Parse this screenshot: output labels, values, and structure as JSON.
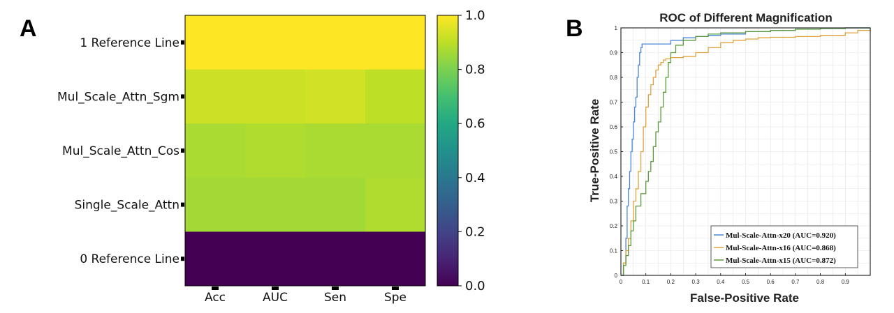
{
  "panels": {
    "a": "A",
    "b": "B"
  },
  "chart_data": [
    {
      "type": "heatmap",
      "panel": "A",
      "title": "",
      "rows": [
        "1 Reference Line",
        "Mul_Scale_Attn_Sgm",
        "Mul_Scale_Attn_Cos",
        "Single_Scale_Attn",
        "0 Reference Line"
      ],
      "columns": [
        "Acc",
        "AUC",
        "Sen",
        "Spe"
      ],
      "values": [
        [
          1.0,
          1.0,
          1.0,
          1.0
        ],
        [
          0.92,
          0.92,
          0.93,
          0.9
        ],
        [
          0.87,
          0.88,
          0.87,
          0.87
        ],
        [
          0.86,
          0.86,
          0.86,
          0.88
        ],
        [
          0.0,
          0.0,
          0.0,
          0.0
        ]
      ],
      "colormap": "viridis",
      "colorbar": {
        "range": [
          0.0,
          1.0
        ],
        "ticks": [
          "0.0",
          "0.2",
          "0.4",
          "0.6",
          "0.8",
          "1.0"
        ]
      }
    },
    {
      "type": "line",
      "panel": "B",
      "title": "ROC of Different Magnification",
      "xlabel": "False-Positive Rate",
      "ylabel": "True-Positive Rate",
      "xlim": [
        0,
        1
      ],
      "ylim": [
        0,
        1
      ],
      "grid": true,
      "x_ticks": [
        "0",
        "0.1",
        "0.2",
        "0.3",
        "0.4",
        "0.5",
        "0.6",
        "0.7",
        "0.8",
        "0.9"
      ],
      "y_ticks": [
        "0",
        "0.1",
        "0.2",
        "0.3",
        "0.4",
        "0.5",
        "0.6",
        "0.7",
        "0.8",
        "0.9",
        "1"
      ],
      "legend_position": "bottom-right",
      "series": [
        {
          "name": "Mul-Scale-Attn-x20 (AUC=0.920)",
          "color": "#4a86d9",
          "x": [
            0,
            0.01,
            0.02,
            0.025,
            0.03,
            0.035,
            0.04,
            0.045,
            0.05,
            0.055,
            0.06,
            0.065,
            0.07,
            0.075,
            0.08,
            0.085,
            0.09,
            0.1,
            0.15,
            0.2,
            0.25,
            0.3,
            0.35,
            0.4,
            0.5,
            0.6,
            0.7,
            0.8,
            0.9,
            0.95,
            1.0
          ],
          "y": [
            0,
            0.05,
            0.15,
            0.28,
            0.35,
            0.42,
            0.5,
            0.55,
            0.62,
            0.68,
            0.72,
            0.8,
            0.85,
            0.9,
            0.92,
            0.935,
            0.935,
            0.935,
            0.935,
            0.95,
            0.96,
            0.965,
            0.97,
            0.975,
            0.985,
            0.99,
            0.995,
            0.998,
            1.0,
            1.0,
            1.0
          ]
        },
        {
          "name": "Mul-Scale-Attn-x16 (AUC=0.868)",
          "color": "#e0a23a",
          "x": [
            0,
            0.01,
            0.02,
            0.03,
            0.04,
            0.05,
            0.06,
            0.07,
            0.08,
            0.09,
            0.1,
            0.11,
            0.12,
            0.13,
            0.14,
            0.15,
            0.16,
            0.17,
            0.18,
            0.2,
            0.25,
            0.3,
            0.35,
            0.4,
            0.45,
            0.5,
            0.55,
            0.6,
            0.7,
            0.8,
            0.9,
            0.95,
            1.0
          ],
          "y": [
            0,
            0.05,
            0.1,
            0.15,
            0.22,
            0.3,
            0.35,
            0.42,
            0.5,
            0.6,
            0.68,
            0.73,
            0.77,
            0.8,
            0.83,
            0.85,
            0.86,
            0.87,
            0.875,
            0.88,
            0.885,
            0.9,
            0.92,
            0.94,
            0.95,
            0.955,
            0.96,
            0.962,
            0.965,
            0.97,
            0.98,
            0.99,
            1.0
          ]
        },
        {
          "name": "Mul-Scale-Attn-x15 (AUC=0.872)",
          "color": "#5a9a3a",
          "x": [
            0,
            0.01,
            0.02,
            0.03,
            0.04,
            0.05,
            0.06,
            0.08,
            0.1,
            0.11,
            0.12,
            0.13,
            0.14,
            0.15,
            0.16,
            0.17,
            0.18,
            0.19,
            0.2,
            0.22,
            0.25,
            0.3,
            0.35,
            0.4,
            0.5,
            0.6,
            0.7,
            0.8,
            0.9,
            0.95,
            1.0
          ],
          "y": [
            0,
            0.04,
            0.08,
            0.12,
            0.18,
            0.22,
            0.28,
            0.33,
            0.38,
            0.42,
            0.46,
            0.52,
            0.58,
            0.62,
            0.68,
            0.74,
            0.8,
            0.86,
            0.9,
            0.93,
            0.95,
            0.965,
            0.975,
            0.98,
            0.985,
            0.99,
            0.995,
            0.998,
            1.0,
            1.0,
            1.0
          ]
        }
      ]
    }
  ]
}
